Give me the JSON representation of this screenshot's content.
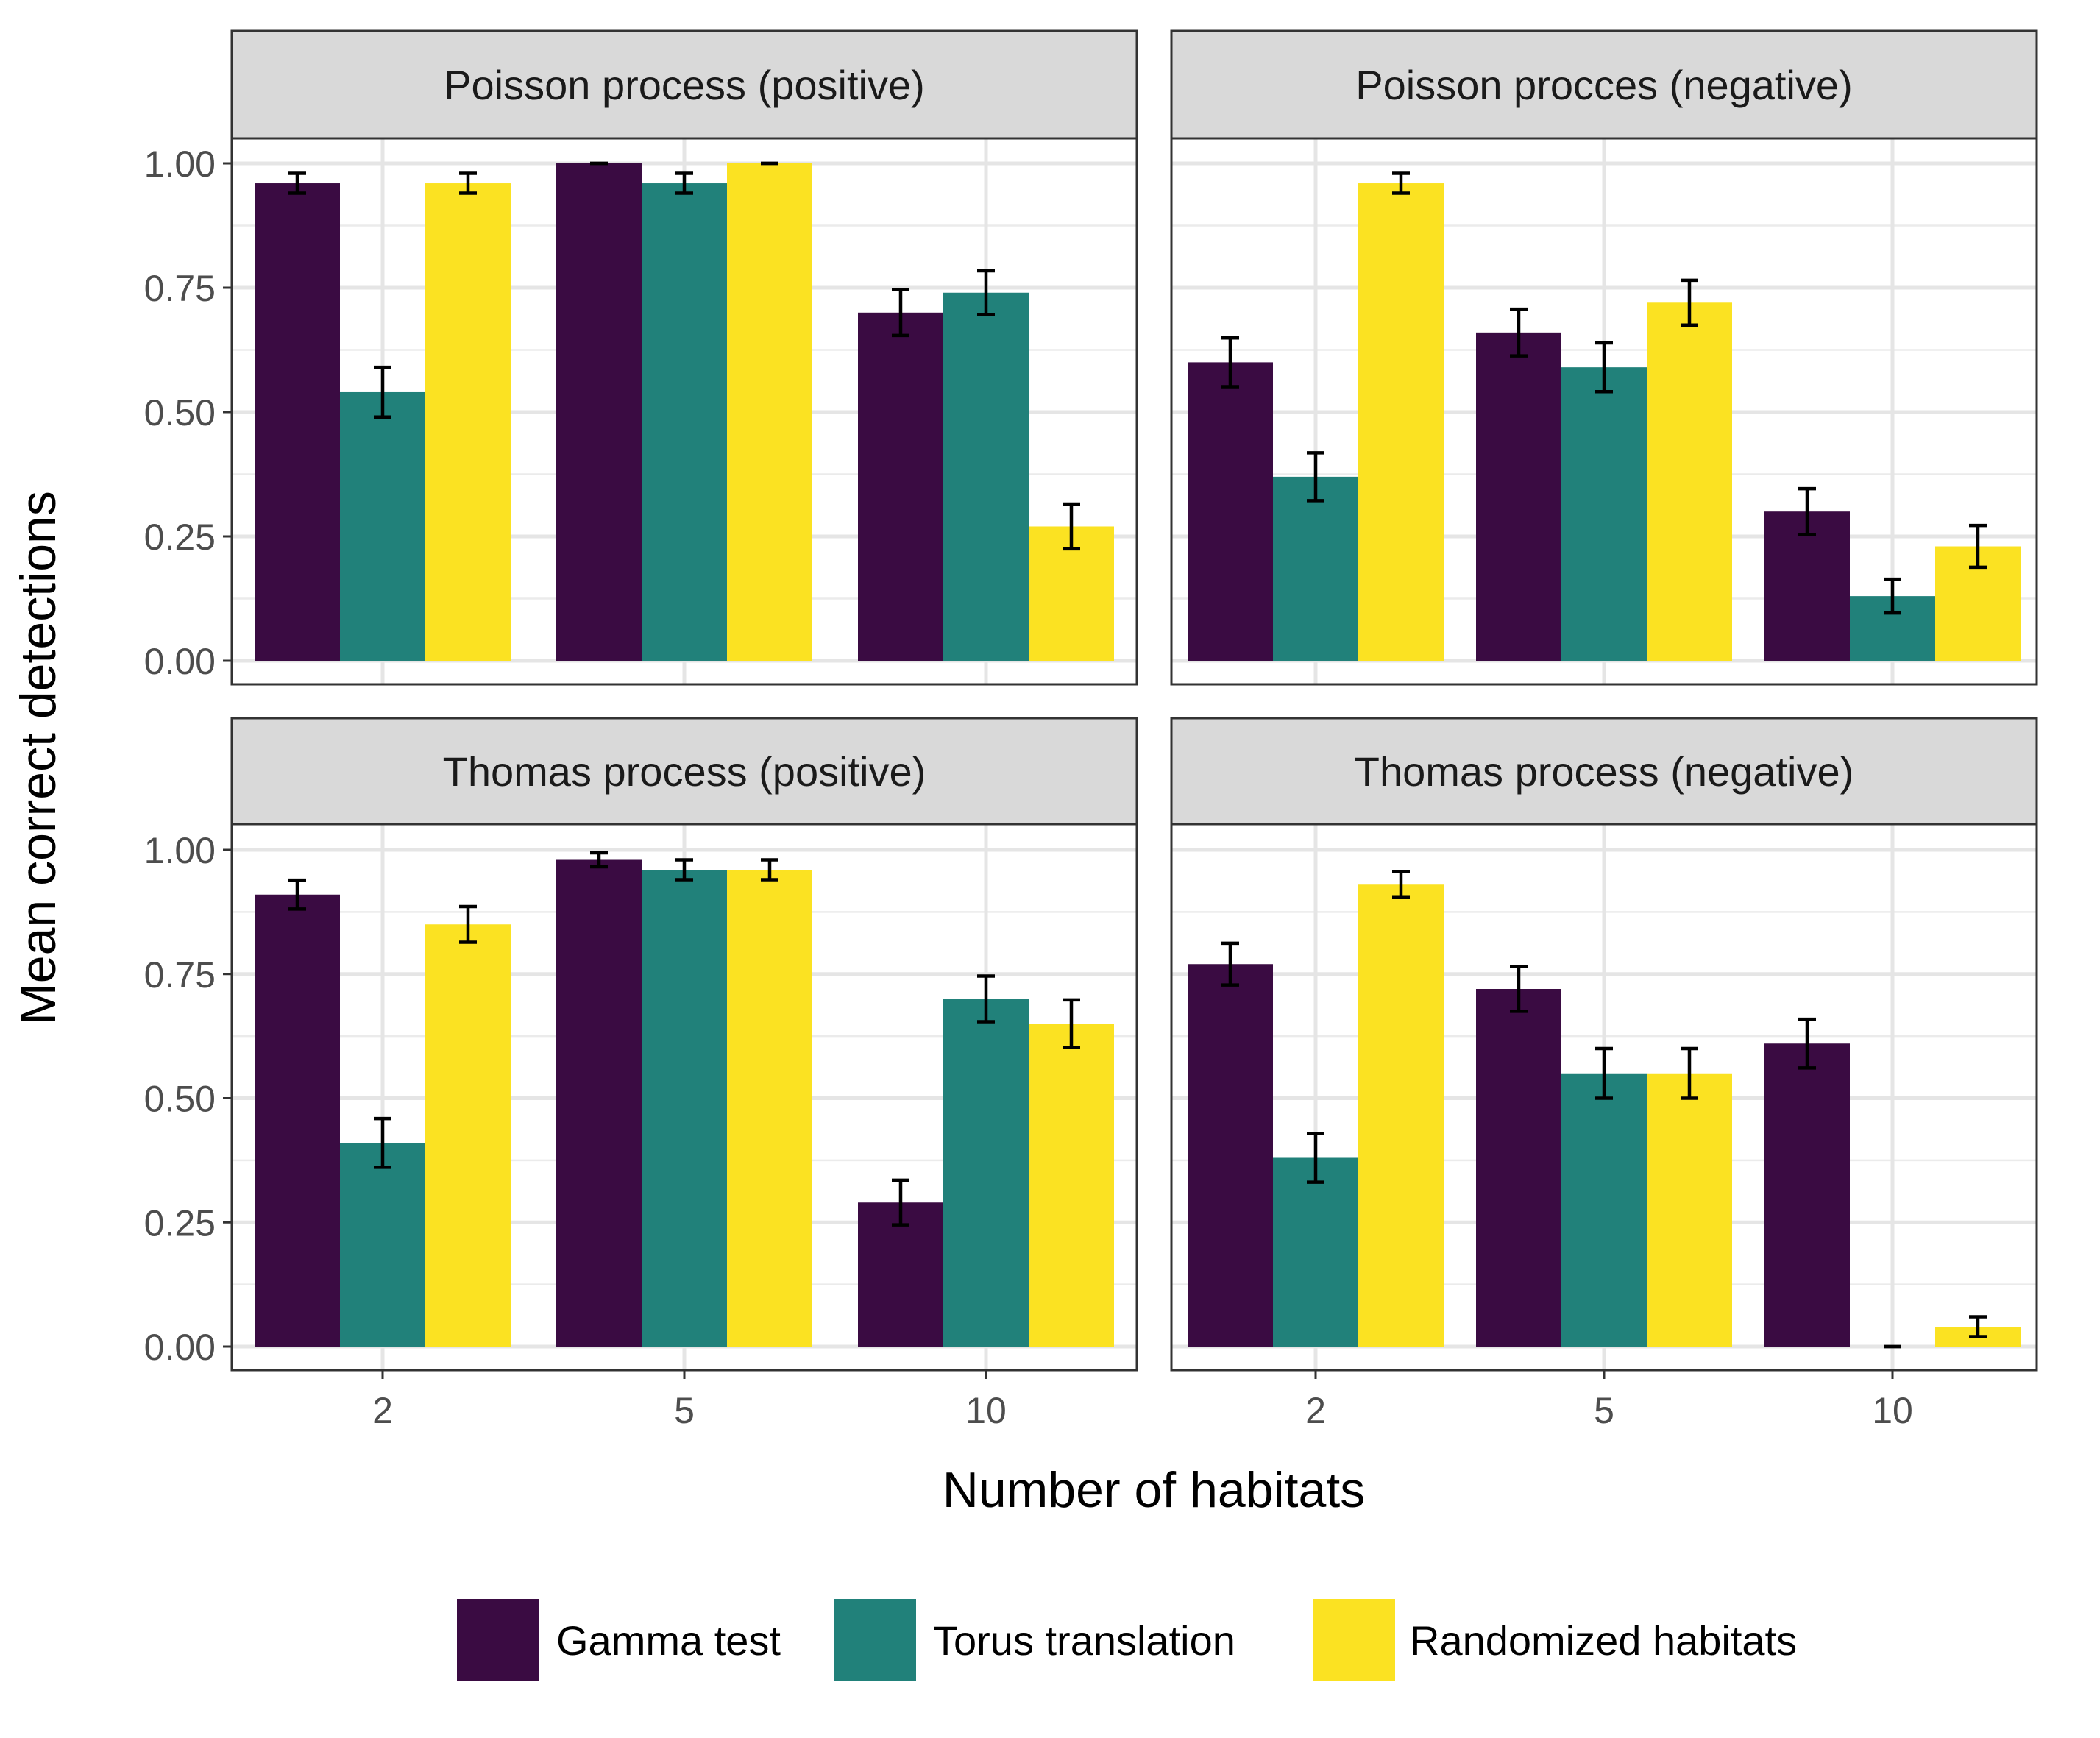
{
  "chart_data": {
    "type": "bar",
    "xlabel": "Number of habitats",
    "ylabel": "Mean correct detections",
    "ylim": [
      0,
      1.05
    ],
    "yticks": [
      "0.00",
      "0.25",
      "0.50",
      "0.75",
      "1.00"
    ],
    "ytick_values": [
      0,
      0.25,
      0.5,
      0.75,
      1.0
    ],
    "categories": [
      "2",
      "5",
      "10"
    ],
    "legend": {
      "position": "bottom",
      "items": [
        {
          "name": "Gamma test",
          "color": "#3a0b42"
        },
        {
          "name": "Torus translation",
          "color": "#21817a"
        },
        {
          "name": "Randomized habitats",
          "color": "#fbe222"
        }
      ]
    },
    "panels": [
      {
        "title": "Poisson process (positive)",
        "series": [
          {
            "name": "Gamma test",
            "values": [
              0.96,
              1.0,
              0.7
            ],
            "err": [
              0.02,
              0.0,
              0.046
            ]
          },
          {
            "name": "Torus translation",
            "values": [
              0.54,
              0.96,
              0.74
            ],
            "err": [
              0.05,
              0.02,
              0.044
            ]
          },
          {
            "name": "Randomized habitats",
            "values": [
              0.96,
              1.0,
              0.27
            ],
            "err": [
              0.02,
              0.0,
              0.045
            ]
          }
        ]
      },
      {
        "title": "Poisson procces (negative)",
        "series": [
          {
            "name": "Gamma test",
            "values": [
              0.6,
              0.66,
              0.3
            ],
            "err": [
              0.049,
              0.047,
              0.046
            ]
          },
          {
            "name": "Torus translation",
            "values": [
              0.37,
              0.59,
              0.13
            ],
            "err": [
              0.048,
              0.049,
              0.034
            ]
          },
          {
            "name": "Randomized habitats",
            "values": [
              0.96,
              0.72,
              0.23
            ],
            "err": [
              0.02,
              0.045,
              0.042
            ]
          }
        ]
      },
      {
        "title": "Thomas process (positive)",
        "series": [
          {
            "name": "Gamma test",
            "values": [
              0.91,
              0.98,
              0.29
            ],
            "err": [
              0.029,
              0.014,
              0.045
            ]
          },
          {
            "name": "Torus translation",
            "values": [
              0.41,
              0.96,
              0.7
            ],
            "err": [
              0.049,
              0.02,
              0.046
            ]
          },
          {
            "name": "Randomized habitats",
            "values": [
              0.85,
              0.96,
              0.65
            ],
            "err": [
              0.036,
              0.02,
              0.048
            ]
          }
        ]
      },
      {
        "title": "Thomas process (negative)",
        "series": [
          {
            "name": "Gamma test",
            "values": [
              0.77,
              0.72,
              0.61
            ],
            "err": [
              0.042,
              0.045,
              0.049
            ]
          },
          {
            "name": "Torus translation",
            "values": [
              0.38,
              0.55,
              0.0
            ],
            "err": [
              0.049,
              0.05,
              0.0
            ]
          },
          {
            "name": "Randomized habitats",
            "values": [
              0.93,
              0.55,
              0.04
            ],
            "err": [
              0.026,
              0.05,
              0.02
            ]
          }
        ]
      }
    ]
  }
}
